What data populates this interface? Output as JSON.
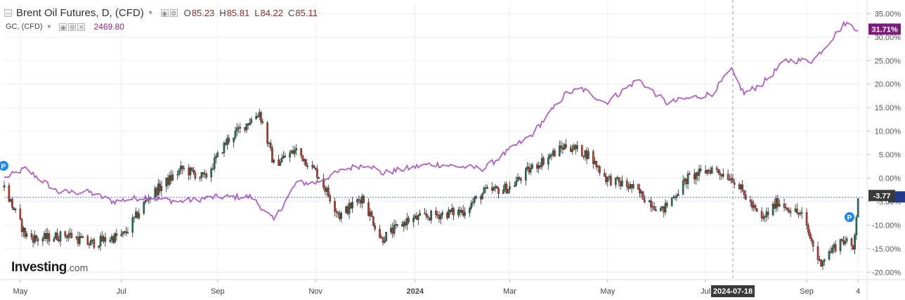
{
  "header": {
    "symbol": "Brent Oil Futures, D, (CFD)",
    "ohlc": [
      {
        "label": "O",
        "value": "85.23"
      },
      {
        "label": "H",
        "value": "85.81"
      },
      {
        "label": "L",
        "value": "84.22"
      },
      {
        "label": "C",
        "value": "85.11"
      }
    ],
    "compare_symbol": "GC, (CFD)",
    "compare_value": "2469.80"
  },
  "logo": {
    "main": "Investing",
    "suffix": ".com"
  },
  "markers": {
    "p_label": "P"
  },
  "colors": {
    "up": "#26734f",
    "down": "#c0392b",
    "compare": "#b160c4",
    "compare_badge": "#7d1a7d",
    "crosshair_badge": "#3a3a3a",
    "last_badge": "#233a8c",
    "grid": "#eeeeee",
    "p_marker": "#1e88e5"
  },
  "chart_data": {
    "type": "candlestick",
    "y_axis": {
      "ticks": [
        "35.00%",
        "30.00%",
        "25.00%",
        "20.00%",
        "15.00%",
        "10.00%",
        "5.00%",
        "0.00%",
        "-5.00%",
        "-10.00%",
        "-15.00%",
        "-20.00%"
      ],
      "unit": "%",
      "range": [
        -21.6,
        37.3
      ]
    },
    "x_axis": {
      "ticks": [
        "May",
        "Jul",
        "Sep",
        "Nov",
        "2024",
        "Mar",
        "May",
        "Jul",
        "Sep",
        "4"
      ],
      "tick_positions_by_date": [
        "2023-05-01",
        "2023-07-03",
        "2023-09-01",
        "2023-11-01",
        "2024-01-02",
        "2024-03-01",
        "2024-05-01",
        "2024-07-01",
        "2024-09-02",
        "2024-10-04"
      ],
      "range": [
        "2023-04-21",
        "2024-10-07"
      ]
    },
    "crosshair_date": "2024-07-18",
    "reference_line_pct": -4.1,
    "series": [
      {
        "name": "Brent Oil Futures",
        "style": "candles",
        "last_badge": "-3.77",
        "points": [
          [
            "2023-04-21",
            -2
          ],
          [
            "2023-05-04",
            -12
          ],
          [
            "2023-05-12",
            -13
          ],
          [
            "2023-05-31",
            -12
          ],
          [
            "2023-06-13",
            -14
          ],
          [
            "2023-07-05",
            -12
          ],
          [
            "2023-07-20",
            -4
          ],
          [
            "2023-08-10",
            2
          ],
          [
            "2023-08-24",
            0
          ],
          [
            "2023-09-07",
            8
          ],
          [
            "2023-09-27",
            14
          ],
          [
            "2023-10-06",
            3
          ],
          [
            "2023-10-20",
            6
          ],
          [
            "2023-11-02",
            1
          ],
          [
            "2023-11-16",
            -8
          ],
          [
            "2023-11-30",
            -4
          ],
          [
            "2023-12-12",
            -13
          ],
          [
            "2023-12-28",
            -9
          ],
          [
            "2024-01-12",
            -8
          ],
          [
            "2024-02-01",
            -7
          ],
          [
            "2024-02-14",
            -3
          ],
          [
            "2024-03-01",
            -2
          ],
          [
            "2024-03-14",
            2
          ],
          [
            "2024-04-05",
            7
          ],
          [
            "2024-04-19",
            5
          ],
          [
            "2024-04-30",
            0
          ],
          [
            "2024-05-16",
            -2
          ],
          [
            "2024-06-04",
            -7
          ],
          [
            "2024-06-20",
            0
          ],
          [
            "2024-07-05",
            2
          ],
          [
            "2024-07-18",
            0
          ],
          [
            "2024-08-05",
            -9
          ],
          [
            "2024-08-15",
            -5
          ],
          [
            "2024-08-30",
            -8
          ],
          [
            "2024-09-10",
            -18
          ],
          [
            "2024-09-24",
            -13
          ],
          [
            "2024-10-01",
            -15
          ],
          [
            "2024-10-04",
            -4
          ]
        ]
      },
      {
        "name": "GC",
        "style": "line",
        "last_badge": "31.71%",
        "points": [
          [
            "2023-04-21",
            0
          ],
          [
            "2023-05-04",
            2
          ],
          [
            "2023-05-25",
            -3
          ],
          [
            "2023-06-13",
            -3
          ],
          [
            "2023-06-28",
            -5
          ],
          [
            "2023-07-18",
            -4
          ],
          [
            "2023-08-08",
            -5
          ],
          [
            "2023-09-01",
            -4
          ],
          [
            "2023-09-22",
            -4
          ],
          [
            "2023-10-06",
            -9
          ],
          [
            "2023-10-20",
            -1
          ],
          [
            "2023-11-01",
            -1
          ],
          [
            "2023-11-20",
            2
          ],
          [
            "2023-12-04",
            3
          ],
          [
            "2023-12-12",
            1
          ],
          [
            "2024-01-12",
            3
          ],
          [
            "2024-02-14",
            2
          ],
          [
            "2024-03-05",
            7
          ],
          [
            "2024-03-14",
            9
          ],
          [
            "2024-04-05",
            18
          ],
          [
            "2024-04-15",
            19
          ],
          [
            "2024-04-30",
            16
          ],
          [
            "2024-05-20",
            21
          ],
          [
            "2024-06-07",
            16
          ],
          [
            "2024-07-05",
            18
          ],
          [
            "2024-07-17",
            23
          ],
          [
            "2024-07-25",
            18
          ],
          [
            "2024-08-05",
            20
          ],
          [
            "2024-08-20",
            25
          ],
          [
            "2024-09-06",
            25
          ],
          [
            "2024-09-26",
            33
          ],
          [
            "2024-10-04",
            31.7
          ]
        ]
      }
    ]
  }
}
